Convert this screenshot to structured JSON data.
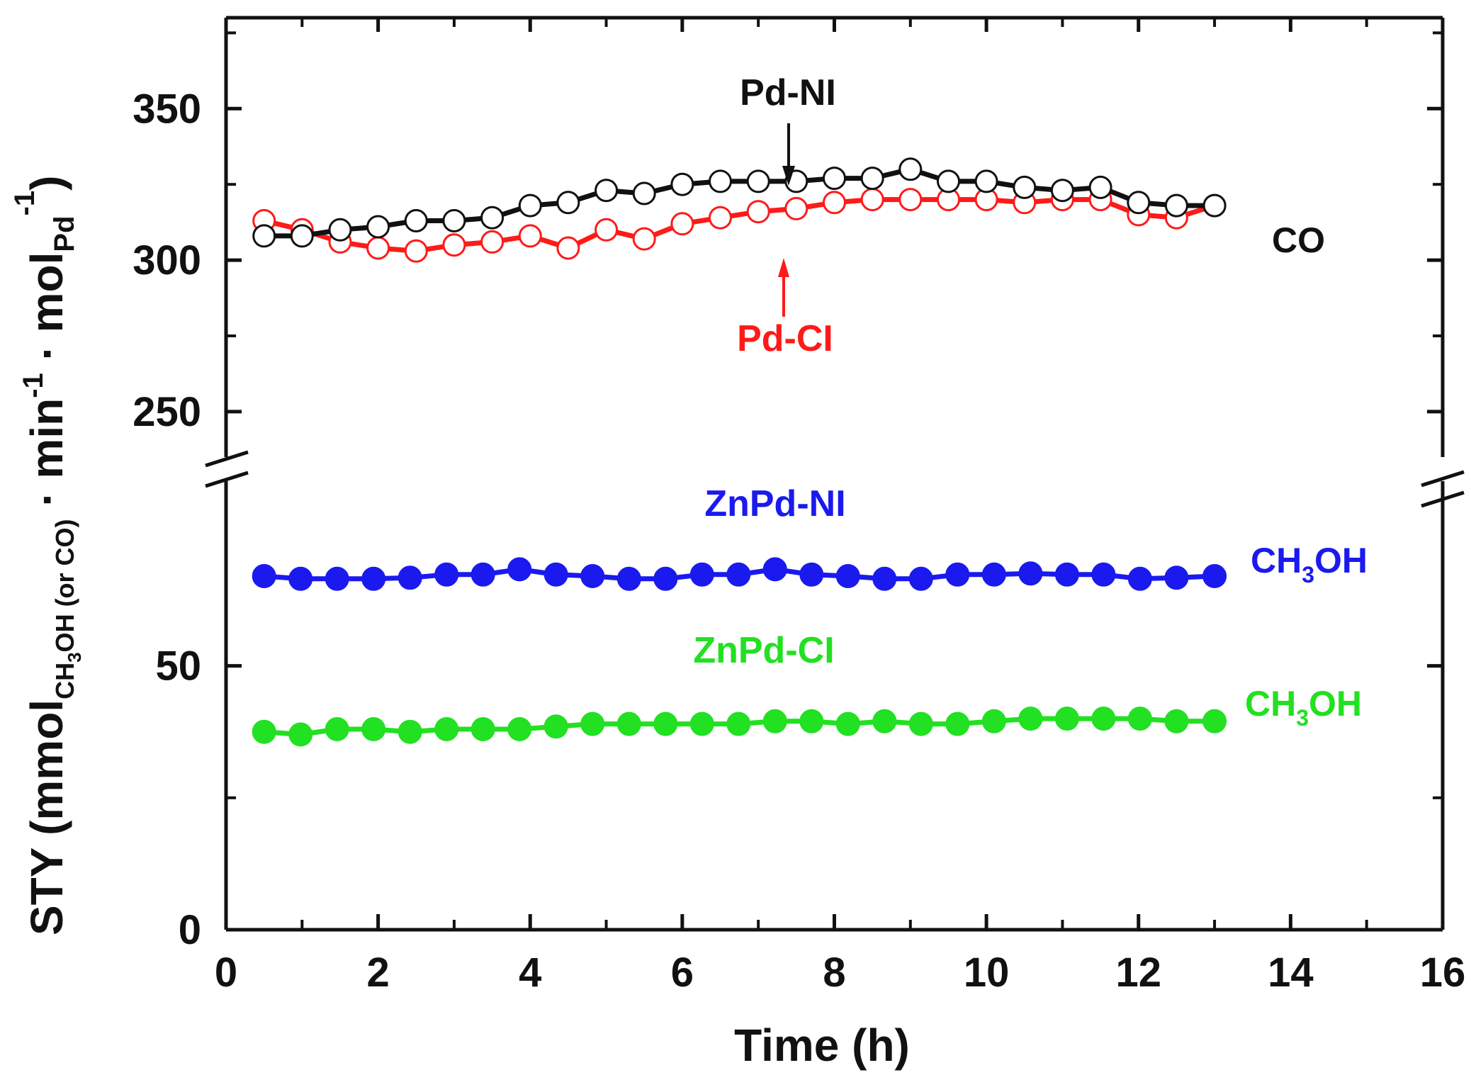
{
  "chart_data": {
    "type": "line",
    "title": "",
    "xlabel": "Time (h)",
    "ylabel": {
      "main": "STY (mmol",
      "sub1": "CH",
      "sub1_idx": "3",
      "sub1_rest": "OH (or CO)",
      "mid1": " · min",
      "sup1": "-1",
      "mid2": " · mol",
      "sub2": "Pd",
      "sup2": "-1",
      "end": ")"
    },
    "xlim": [
      0,
      16
    ],
    "x_ticks": [
      "0",
      "2",
      "4",
      "6",
      "8",
      "10",
      "12",
      "14",
      "16"
    ],
    "y_break": {
      "lower_range": [
        0,
        85
      ],
      "upper_range": [
        235,
        380
      ]
    },
    "y_ticks": [
      {
        "value": 0,
        "label": "0"
      },
      {
        "value": 50,
        "label": "50"
      },
      {
        "value": 250,
        "label": "250"
      },
      {
        "value": 300,
        "label": "300"
      },
      {
        "value": 350,
        "label": "350"
      }
    ],
    "y_minor_ticks": [
      25,
      275,
      325,
      375
    ],
    "series": [
      {
        "name": "Pd-CI",
        "product": "CO",
        "color": "#ff1a1a",
        "marker": "open-circle",
        "x": [
          0.5,
          1.0,
          1.5,
          2.0,
          2.5,
          3.0,
          3.5,
          4.0,
          4.5,
          5.0,
          5.5,
          6.0,
          6.5,
          7.0,
          7.5,
          8.0,
          8.5,
          9.0,
          9.5,
          10.0,
          10.5,
          11.0,
          11.5,
          12.0,
          12.5,
          13.0
        ],
        "values": [
          313,
          310,
          306,
          304,
          303,
          305,
          306,
          308,
          304,
          310,
          307,
          312,
          314,
          316,
          317,
          319,
          320,
          320,
          320,
          320,
          319,
          320,
          320,
          315,
          314,
          318
        ]
      },
      {
        "name": "Pd-NI",
        "product": "CO",
        "color": "#111111",
        "marker": "open-circle",
        "x": [
          0.5,
          1.0,
          1.5,
          2.0,
          2.5,
          3.0,
          3.5,
          4.0,
          4.5,
          5.0,
          5.5,
          6.0,
          6.5,
          7.0,
          7.5,
          8.0,
          8.5,
          9.0,
          9.5,
          10.0,
          10.5,
          11.0,
          11.5,
          12.0,
          12.5,
          13.0
        ],
        "values": [
          308,
          308,
          310,
          311,
          313,
          313,
          314,
          318,
          319,
          323,
          322,
          325,
          326,
          326,
          326,
          327,
          327,
          330,
          326,
          326,
          324,
          323,
          324,
          319,
          318,
          318
        ]
      },
      {
        "name": "ZnPd-NI",
        "product": "CH3OH",
        "color": "#1a1aee",
        "marker": "filled-circle",
        "x": [
          0.5,
          0.98,
          1.46,
          1.94,
          2.42,
          2.9,
          3.38,
          3.86,
          4.34,
          4.82,
          5.3,
          5.78,
          6.26,
          6.74,
          7.22,
          7.7,
          8.18,
          8.66,
          9.14,
          9.62,
          10.1,
          10.58,
          11.06,
          11.54,
          12.02,
          12.5,
          13.0
        ],
        "values": [
          67,
          66.5,
          66.5,
          66.5,
          66.7,
          67.3,
          67.3,
          68.3,
          67.3,
          67,
          66.5,
          66.5,
          67.3,
          67.3,
          68.3,
          67.3,
          67,
          66.5,
          66.5,
          67.3,
          67.3,
          67.5,
          67.3,
          67.3,
          66.5,
          66.7,
          67
        ]
      },
      {
        "name": "ZnPd-CI",
        "product": "CH3OH",
        "color": "#22e022",
        "marker": "filled-circle",
        "x": [
          0.5,
          0.98,
          1.46,
          1.94,
          2.42,
          2.9,
          3.38,
          3.86,
          4.34,
          4.82,
          5.3,
          5.78,
          6.26,
          6.74,
          7.22,
          7.7,
          8.18,
          8.66,
          9.14,
          9.62,
          10.1,
          10.58,
          11.06,
          11.54,
          12.02,
          12.5,
          13.0
        ],
        "values": [
          37.5,
          37,
          38,
          38,
          37.5,
          38,
          38,
          38,
          38.5,
          39,
          39,
          39,
          39,
          39,
          39.5,
          39.5,
          39,
          39.5,
          39,
          39,
          39.5,
          40,
          40,
          40,
          40,
          39.5,
          39.5
        ]
      }
    ],
    "annotations": {
      "pd_ni": "Pd-NI",
      "pd_ci": "Pd-CI",
      "znpd_ni": "ZnPd-NI",
      "znpd_ci": "ZnPd-CI",
      "co": "CO",
      "ch3oh_top": {
        "main": "CH",
        "sub": "3",
        "rest": "OH"
      },
      "ch3oh_bottom": {
        "main": "CH",
        "sub": "3",
        "rest": "OH"
      }
    }
  }
}
